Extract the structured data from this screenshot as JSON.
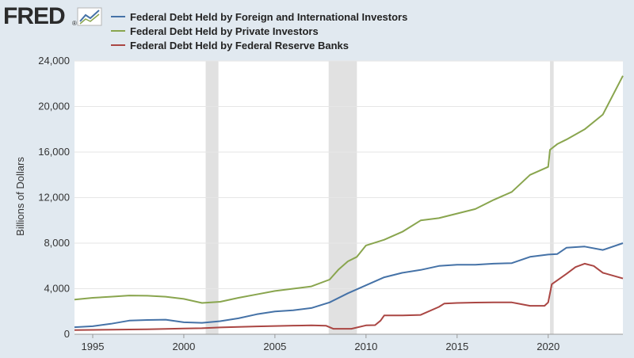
{
  "logo": {
    "text": "FRED",
    "icon": "chart-line-icon",
    "registered": "®"
  },
  "colors": {
    "background": "#e1e9f0",
    "plot_background": "#ffffff",
    "recession": "#e1e1e1",
    "grid": "#e6e6e6"
  },
  "chart_data": {
    "type": "line",
    "title": "",
    "xlabel": "",
    "ylabel": "Billions of Dollars",
    "xlim": [
      1994,
      2024.1
    ],
    "ylim": [
      0,
      24000
    ],
    "grid": true,
    "legend_position": "top-left",
    "x_ticks": [
      1995,
      2000,
      2005,
      2010,
      2015,
      2020
    ],
    "x_tick_labels": [
      "1995",
      "2000",
      "2005",
      "2010",
      "2015",
      "2020"
    ],
    "y_ticks": [
      0,
      4000,
      8000,
      12000,
      16000,
      20000,
      24000
    ],
    "y_tick_labels": [
      "0",
      "4,000",
      "8,000",
      "12,000",
      "16,000",
      "20,000",
      "24,000"
    ],
    "recessions": [
      [
        2001.2,
        2001.9
      ],
      [
        2007.95,
        2009.5
      ],
      [
        2020.1,
        2020.3
      ]
    ],
    "series": [
      {
        "name": "Federal Debt Held by Foreign and International Investors",
        "color": "#4572a7",
        "x": [
          1994,
          1995,
          1996,
          1997,
          1998,
          1999,
          2000,
          2001,
          2002,
          2003,
          2004,
          2005,
          2006,
          2007,
          2008,
          2009,
          2010,
          2011,
          2012,
          2013,
          2014,
          2015,
          2016,
          2017,
          2018,
          2019,
          2020,
          2020.5,
          2021,
          2022,
          2023,
          2024.1
        ],
        "y": [
          620,
          700,
          920,
          1200,
          1250,
          1280,
          1050,
          1000,
          1150,
          1400,
          1750,
          2000,
          2100,
          2300,
          2800,
          3600,
          4300,
          5000,
          5400,
          5650,
          6000,
          6100,
          6100,
          6200,
          6250,
          6800,
          7000,
          7050,
          7600,
          7700,
          7400,
          8000
        ]
      },
      {
        "name": "Federal Debt Held by Private Investors",
        "color": "#89a54e",
        "x": [
          1994,
          1995,
          1996,
          1997,
          1998,
          1999,
          2000,
          2001,
          2002,
          2003,
          2004,
          2005,
          2006,
          2007,
          2008,
          2008.5,
          2009,
          2009.5,
          2010,
          2011,
          2012,
          2013,
          2014,
          2015,
          2016,
          2017,
          2018,
          2019,
          2020,
          2020.1,
          2020.5,
          2021,
          2022,
          2023,
          2024.1
        ],
        "y": [
          3050,
          3200,
          3300,
          3400,
          3380,
          3300,
          3100,
          2750,
          2850,
          3200,
          3500,
          3800,
          4000,
          4200,
          4800,
          5700,
          6400,
          6800,
          7800,
          8300,
          9000,
          10000,
          10200,
          10600,
          11000,
          11800,
          12500,
          14000,
          14700,
          16200,
          16700,
          17100,
          18000,
          19300,
          22700
        ]
      },
      {
        "name": "Federal Debt Held by Federal Reserve Banks",
        "color": "#aa4643",
        "x": [
          1994,
          1995,
          1996,
          1997,
          1998,
          1999,
          2000,
          2001,
          2002,
          2003,
          2004,
          2005,
          2006,
          2007,
          2007.8,
          2008.2,
          2009,
          2009.2,
          2010,
          2010.5,
          2010.8,
          2011,
          2012,
          2013,
          2014,
          2014.3,
          2015,
          2016,
          2017,
          2018,
          2019,
          2019.8,
          2020,
          2020.2,
          2021,
          2021.5,
          2022,
          2022.5,
          2023,
          2024.1
        ],
        "y": [
          360,
          380,
          400,
          420,
          440,
          470,
          500,
          530,
          600,
          650,
          690,
          720,
          760,
          780,
          750,
          480,
          480,
          480,
          780,
          800,
          1200,
          1650,
          1650,
          1700,
          2400,
          2700,
          2750,
          2780,
          2800,
          2800,
          2500,
          2500,
          2800,
          4400,
          5300,
          5900,
          6200,
          6000,
          5400,
          4900
        ]
      }
    ]
  }
}
